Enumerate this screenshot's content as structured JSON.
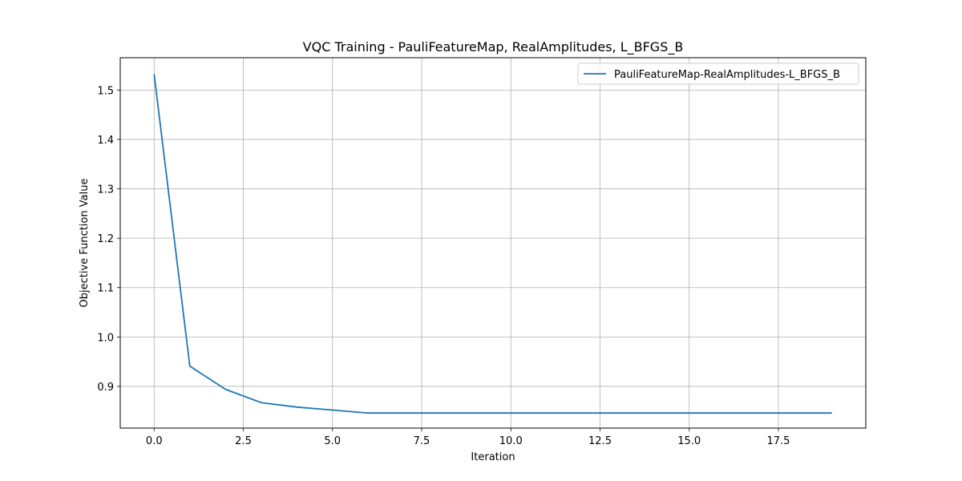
{
  "chart_data": {
    "type": "line",
    "title": "VQC Training - PauliFeatureMap, RealAmplitudes, L_BFGS_B",
    "xlabel": "Iteration",
    "ylabel": "Objective Function Value",
    "xlim": [
      -0.95,
      19.95
    ],
    "ylim": [
      0.8155,
      1.5655
    ],
    "xticks": [
      0.0,
      2.5,
      5.0,
      7.5,
      10.0,
      12.5,
      15.0,
      17.5
    ],
    "xtick_labels": [
      "0.0",
      "2.5",
      "5.0",
      "7.5",
      "10.0",
      "12.5",
      "15.0",
      "17.5"
    ],
    "yticks": [
      0.9,
      1.0,
      1.1,
      1.2,
      1.3,
      1.4,
      1.5
    ],
    "ytick_labels": [
      "0.9",
      "1.0",
      "1.1",
      "1.2",
      "1.3",
      "1.4",
      "1.5"
    ],
    "grid": true,
    "legend_position": "top-right",
    "series": [
      {
        "name": "PauliFeatureMap-RealAmplitudes-L_BFGS_B",
        "color": "#1f77b4",
        "x": [
          0,
          1,
          2,
          3,
          4,
          5,
          6,
          7,
          8,
          9,
          10,
          11,
          12,
          13,
          14,
          15,
          16,
          17,
          18,
          19
        ],
        "values": [
          1.532,
          0.941,
          0.894,
          0.867,
          0.858,
          0.852,
          0.846,
          0.846,
          0.846,
          0.846,
          0.846,
          0.846,
          0.846,
          0.846,
          0.846,
          0.846,
          0.846,
          0.846,
          0.846,
          0.846
        ]
      }
    ]
  }
}
